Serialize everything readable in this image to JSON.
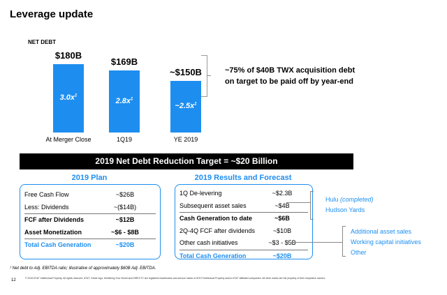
{
  "title": "Leverage update",
  "net_debt_label": "NET DEBT",
  "chart_data": {
    "type": "bar",
    "categories": [
      "At Merger Close",
      "1Q19",
      "YE 2019"
    ],
    "values": [
      180,
      169,
      150
    ],
    "value_labels": [
      "$180B",
      "$169B",
      "~$150B"
    ],
    "inner_labels": [
      "3.0x",
      "2.8x",
      "~2.5x"
    ],
    "inner_superscript": "1",
    "unit": "B",
    "ylim": [
      0,
      180
    ]
  },
  "callout": {
    "line1": "~75% of $40B TWX acquisition debt",
    "line2": "on target to be paid off by year-end"
  },
  "banner": "2019 Net Debt Reduction Target = ~$20 Billion",
  "plan": {
    "heading": "2019 Plan",
    "rows": [
      {
        "label": "Free Cash Flow",
        "value": "~$26B"
      },
      {
        "label": "Less: Dividends",
        "value": "~($14B)"
      },
      {
        "label": "FCF after Dividends",
        "value": "~$12B"
      },
      {
        "label": "Asset Monetization",
        "value": "~$6 - $8B"
      },
      {
        "label": "Total Cash Generation",
        "value": "~$20B"
      }
    ]
  },
  "results": {
    "heading": "2019 Results and Forecast",
    "rows": [
      {
        "label": "1Q De-levering",
        "value": "~$2.3B"
      },
      {
        "label": "Subsequent asset sales",
        "value": "~$4B"
      },
      {
        "label": "Cash Generation to date",
        "value": "~$6B"
      },
      {
        "label": "2Q-4Q FCF after dividends",
        "value": "~$10B"
      },
      {
        "label": "Other cash initiatives",
        "value": "~$3 - $5B"
      },
      {
        "label": "Total Cash Generation",
        "value": "~$20B"
      }
    ]
  },
  "side_top": {
    "item1": "Hulu ",
    "item1_note": "(completed)",
    "item2": "Hudson Yards"
  },
  "side_bottom": [
    "Additional asset sales",
    "Working capital initiatives",
    "Other"
  ],
  "footnote": "¹ Net debt to Adj. EBITDA ratio; illustrative of approximately $60B Adj. EBITDA.",
  "page_number": "12",
  "legal": "© 2019 AT&T Intellectual Property. All rights reserved. AT&T, Globe logo, Mobilizing Your World and DIRECTV are registered trademarks and service marks of AT&T Intellectual Property and/or AT&T affiliated companies. All other marks are the property of their respective owners."
}
